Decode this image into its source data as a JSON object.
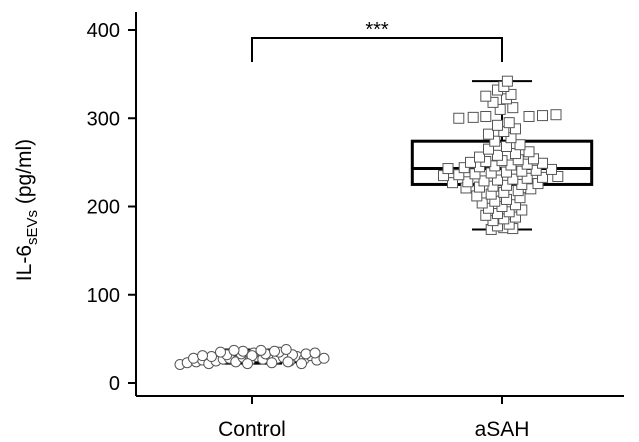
{
  "chart_data": {
    "type": "box",
    "ylabel_main": "IL-6",
    "ylabel_sub": "sEVs",
    "ylabel_unit": " (pg/ml)",
    "ylim": [
      -10,
      420
    ],
    "yticks": [
      0,
      100,
      200,
      300,
      400
    ],
    "categories": [
      "Control",
      "aSAH"
    ],
    "significance": "***",
    "series": [
      {
        "category": "Control",
        "marker": "circle",
        "whisker_low": 22,
        "q1": 24,
        "median": 28,
        "q3": 32,
        "whisker_high": 38,
        "points": [
          [
            -0.8,
            21
          ],
          [
            -0.72,
            23
          ],
          [
            -0.62,
            24
          ],
          [
            -0.55,
            26
          ],
          [
            -0.48,
            22
          ],
          [
            -0.4,
            25
          ],
          [
            -0.32,
            27
          ],
          [
            -0.25,
            28
          ],
          [
            -0.18,
            24
          ],
          [
            -0.1,
            29
          ],
          [
            -0.02,
            26
          ],
          [
            0.05,
            30
          ],
          [
            0.12,
            27
          ],
          [
            0.2,
            31
          ],
          [
            0.28,
            28
          ],
          [
            0.35,
            29
          ],
          [
            0.42,
            25
          ],
          [
            0.5,
            30
          ],
          [
            0.58,
            27
          ],
          [
            0.65,
            31
          ],
          [
            0.72,
            26
          ],
          [
            0.8,
            28
          ],
          [
            -0.65,
            28
          ],
          [
            -0.45,
            30
          ],
          [
            -0.28,
            32
          ],
          [
            -0.12,
            33
          ],
          [
            0.02,
            34
          ],
          [
            0.15,
            33
          ],
          [
            0.3,
            35
          ],
          [
            0.45,
            32
          ],
          [
            0.6,
            33
          ],
          [
            -0.35,
            35
          ],
          [
            -0.1,
            36
          ],
          [
            0.1,
            37
          ],
          [
            0.25,
            36
          ],
          [
            0.38,
            38
          ],
          [
            -0.2,
            37
          ],
          [
            0.0,
            31
          ],
          [
            -0.55,
            31
          ],
          [
            0.7,
            34
          ],
          [
            -0.05,
            22
          ],
          [
            0.22,
            23
          ],
          [
            0.4,
            24
          ],
          [
            0.55,
            22
          ]
        ]
      },
      {
        "category": "aSAH",
        "marker": "square",
        "whisker_low": 174,
        "q1": 225,
        "median": 243,
        "q3": 274,
        "whisker_high": 342,
        "points": [
          [
            -0.12,
            174
          ],
          [
            0.02,
            176
          ],
          [
            0.12,
            175
          ],
          [
            -0.05,
            178
          ],
          [
            0.08,
            180
          ],
          [
            -0.1,
            184
          ],
          [
            0.02,
            186
          ],
          [
            0.15,
            188
          ],
          [
            -0.18,
            190
          ],
          [
            -0.05,
            192
          ],
          [
            0.08,
            194
          ],
          [
            0.22,
            196
          ],
          [
            -0.15,
            198
          ],
          [
            0.0,
            200
          ],
          [
            0.15,
            202
          ],
          [
            -0.22,
            204
          ],
          [
            -0.08,
            206
          ],
          [
            0.05,
            208
          ],
          [
            0.2,
            210
          ],
          [
            -0.28,
            212
          ],
          [
            -0.12,
            214
          ],
          [
            0.02,
            216
          ],
          [
            0.18,
            218
          ],
          [
            0.32,
            220
          ],
          [
            -0.4,
            221
          ],
          [
            -0.25,
            222
          ],
          [
            -0.1,
            223
          ],
          [
            0.05,
            224
          ],
          [
            0.22,
            225
          ],
          [
            0.4,
            226
          ],
          [
            -0.55,
            227
          ],
          [
            -0.38,
            228
          ],
          [
            -0.2,
            229
          ],
          [
            -0.05,
            230
          ],
          [
            0.12,
            231
          ],
          [
            0.28,
            232
          ],
          [
            0.45,
            233
          ],
          [
            0.62,
            234
          ],
          [
            -0.65,
            235
          ],
          [
            -0.48,
            236
          ],
          [
            -0.3,
            237
          ],
          [
            -0.12,
            238
          ],
          [
            0.05,
            239
          ],
          [
            0.22,
            240
          ],
          [
            0.38,
            241
          ],
          [
            0.55,
            242
          ],
          [
            -0.6,
            243
          ],
          [
            -0.42,
            244
          ],
          [
            -0.25,
            245
          ],
          [
            -0.08,
            246
          ],
          [
            0.1,
            247
          ],
          [
            0.28,
            248
          ],
          [
            0.45,
            249
          ],
          [
            -0.35,
            250
          ],
          [
            -0.18,
            251
          ],
          [
            0.0,
            252
          ],
          [
            0.18,
            253
          ],
          [
            0.35,
            254
          ],
          [
            -0.25,
            256
          ],
          [
            -0.05,
            258
          ],
          [
            0.15,
            260
          ],
          [
            0.3,
            262
          ],
          [
            -0.15,
            265
          ],
          [
            0.05,
            268
          ],
          [
            0.2,
            270
          ],
          [
            -0.08,
            274
          ],
          [
            0.1,
            278
          ],
          [
            -0.15,
            282
          ],
          [
            0.02,
            285
          ],
          [
            0.15,
            288
          ],
          [
            -0.05,
            292
          ],
          [
            0.08,
            295
          ],
          [
            -0.48,
            300
          ],
          [
            -0.32,
            301
          ],
          [
            -0.18,
            302
          ],
          [
            0.3,
            302
          ],
          [
            0.45,
            303
          ],
          [
            0.6,
            304
          ],
          [
            -0.02,
            310
          ],
          [
            0.12,
            312
          ],
          [
            -0.1,
            318
          ],
          [
            0.05,
            322
          ],
          [
            -0.18,
            325
          ],
          [
            0.1,
            327
          ],
          [
            -0.05,
            332
          ],
          [
            0.02,
            336
          ],
          [
            0.06,
            342
          ]
        ]
      }
    ]
  }
}
